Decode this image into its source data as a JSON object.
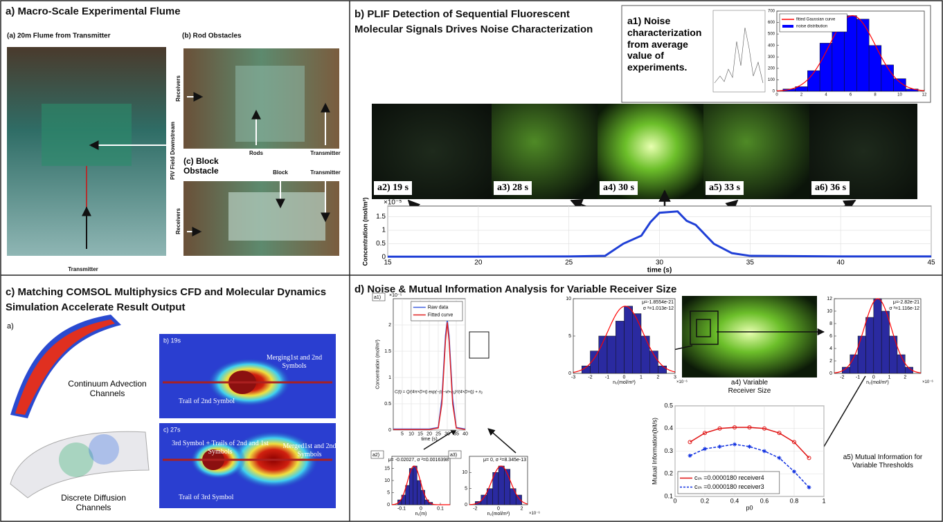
{
  "panel_a": {
    "title": "a) Macro-Scale Experimental Flume",
    "photo_1": "(a) 20m Flume from Transmitter",
    "photo_2": "(b) Rod Obstacles",
    "photo_3": "(c) Block Obstacle",
    "piv": "PIV Field Downstream",
    "transmitter_1": "Transmitter",
    "receivers_1": "Receivers",
    "rods": "Rods",
    "transmitter_2": "Transmitter",
    "block": "Block",
    "transmitter_3": "Transmitter",
    "receivers_2": "Receivers"
  },
  "panel_b": {
    "title": "b) PLIF Detection of Sequential Fluorescent Molecular Signals Drives Noise Characterization",
    "note": "a1) Noise characterization from average value of experiments.",
    "frames": [
      "a2) 19 s",
      "a3) 28 s",
      "a4) 30 s",
      "a5) 33 s",
      "a6) 36 s"
    ]
  },
  "panel_c": {
    "title": "c) Matching COMSOL Multiphysics CFD and Molecular Dynamics Simulation Accelerate Result Output",
    "label": "a)",
    "continuum": "Continuum Advection Channels",
    "discrete": "Discrete Diffusion Channels",
    "b_label": "b) 19s",
    "merging": "Merging1st and 2nd Symbols",
    "trail_2": "Trail of 2nd Symbol",
    "c_label": "c) 27s",
    "third": "3rd Symbol + Trails of 2nd and 1st Symbols",
    "merged": "Merged1st and 2nd Symbols",
    "trail_3": "Trail of 3rd Symbol"
  },
  "panel_d": {
    "title": "d) Noise & Mutual Information Analysis for Variable Receiver Size",
    "receiver": "a4) Variable Receiver Size",
    "mi_note": "a5) Mutual Information for Variable Thresholds"
  },
  "chart_data": [
    {
      "type": "line",
      "ylabel": "Concentration (mol/m³)",
      "xlabel": "time (s)",
      "y_scale_label": "×10⁻⁵",
      "x": [
        15,
        20,
        25,
        27,
        28,
        29,
        29.5,
        30,
        31,
        31.5,
        32,
        33,
        34,
        35,
        40,
        45
      ],
      "values": [
        0.02,
        0.02,
        0.03,
        0.05,
        0.5,
        0.8,
        1.3,
        1.65,
        1.7,
        1.35,
        1.2,
        0.5,
        0.15,
        0.05,
        0.03,
        0.03
      ],
      "color": "#1f3fd6",
      "xlim": [
        15,
        45
      ],
      "ylim": [
        0,
        1.9
      ],
      "xticks": [
        15,
        20,
        25,
        30,
        35,
        40,
        45
      ],
      "yticks": [
        0,
        0.5,
        1,
        1.5
      ],
      "grid": true
    },
    {
      "type": "histogram",
      "legend_labels": [
        "fitted Gaussian curve",
        "noise distribution"
      ],
      "legend": "upper left",
      "bins": [
        0.5,
        1.5,
        2.5,
        3.5,
        4.5,
        5.5,
        6.5,
        7.5,
        8.5,
        9.5,
        10.5,
        11.5
      ],
      "values": [
        20,
        40,
        180,
        420,
        550,
        660,
        630,
        400,
        230,
        110,
        20
      ],
      "color": "#0000ff",
      "fit_color": "#ff0000",
      "xlim": [
        0,
        12
      ],
      "ylim": [
        0,
        700
      ],
      "xticks": [
        0,
        2,
        4,
        6,
        8,
        10,
        12
      ],
      "yticks": [
        0,
        100,
        200,
        300,
        400,
        500,
        600,
        700
      ]
    },
    {
      "type": "line",
      "panel_label": "a1)",
      "ylabel": "Concentration (mol/m³)",
      "xlabel": "time (s)",
      "y_scale_label": "×10⁻⁵",
      "formula": "C(t) = Q/(4π×D×t) exp(−(d−vt+n₁)²/(4×D×t)) + n₂",
      "x": [
        0,
        5,
        10,
        15,
        20,
        25,
        27,
        29,
        30,
        31,
        33,
        35,
        40
      ],
      "series": [
        {
          "name": "Raw data",
          "color": "#4060e0",
          "values": [
            0.02,
            0.02,
            0.02,
            0.02,
            0.02,
            0.05,
            0.6,
            1.8,
            2.1,
            1.8,
            0.6,
            0.05,
            0.02
          ]
        },
        {
          "name": "Fitted curve",
          "color": "#e02020",
          "values": [
            0.01,
            0.01,
            0.01,
            0.01,
            0.01,
            0.04,
            0.5,
            1.7,
            2.05,
            1.7,
            0.5,
            0.04,
            0.01
          ]
        }
      ],
      "legend": "upper right",
      "xlim": [
        0,
        40
      ],
      "ylim": [
        0,
        2.5
      ],
      "xticks": [
        5,
        10,
        15,
        20,
        25,
        30,
        35,
        40
      ],
      "yticks": [
        0,
        0.5,
        1,
        1.5,
        2
      ],
      "grid": true
    },
    {
      "type": "histogram",
      "panel_label": "a2)",
      "annotations": [
        "μ= -0.02027, σ ²=0.0016398"
      ],
      "xlabel": "n₁(m)",
      "bins": [
        -0.12,
        -0.1,
        -0.08,
        -0.06,
        -0.04,
        -0.02,
        0,
        0.02,
        0.04,
        0.06
      ],
      "values": [
        2,
        4,
        8,
        15,
        16,
        10,
        6,
        2,
        1
      ],
      "color": "#2a2aa0",
      "fit_color": "#ff0000",
      "xlim": [
        -0.15,
        0.15
      ],
      "xticks": [
        -0.1,
        0,
        0.1
      ],
      "ylim": [
        0,
        20
      ],
      "yticks": [
        0,
        5,
        10,
        15
      ]
    },
    {
      "type": "histogram",
      "panel_label": "a3)",
      "annotations": [
        "μ= 0, σ ²=8.345e-13"
      ],
      "xlabel": "n₂(mol/m³)",
      "x_scale_label": "×10⁻⁶",
      "bins": [
        -2,
        -1.5,
        -1,
        -0.5,
        0,
        0.5,
        1,
        1.5,
        2
      ],
      "values": [
        1,
        3,
        5,
        10,
        12,
        11,
        5,
        3
      ],
      "color": "#2a2aa0",
      "fit_color": "#ff0000",
      "xlim": [
        -2.5,
        2.5
      ],
      "xticks": [
        -2,
        0,
        2
      ],
      "ylim": [
        0,
        15
      ],
      "yticks": [
        0,
        5,
        10
      ]
    },
    {
      "type": "histogram",
      "annotations": [
        "μ=-1.8554e-21",
        "σ ²=1.013e-12"
      ],
      "xlabel": "n₂(mol/m³)",
      "x_scale_label": "×10⁻⁶",
      "bins": [
        -2.5,
        -2,
        -1.5,
        -1,
        -0.5,
        0,
        0.5,
        1,
        1.5,
        2,
        2.5
      ],
      "values": [
        1,
        3,
        5,
        5,
        7,
        9,
        8,
        5,
        3,
        1
      ],
      "color": "#2a2aa0",
      "fit_color": "#ff0000",
      "xlim": [
        -3,
        3
      ],
      "xticks": [
        -3,
        -2,
        -1,
        0,
        1,
        2,
        3
      ],
      "ylim": [
        0,
        10
      ],
      "yticks": [
        0,
        5,
        10
      ]
    },
    {
      "type": "histogram",
      "annotations": [
        "μ=-2.82e-21",
        "σ ²=1.116e-12"
      ],
      "xlabel": "n₂(mol/m³)",
      "x_scale_label": "×10⁻⁶",
      "bins": [
        -2,
        -1.5,
        -1,
        -0.5,
        0,
        0.5,
        1,
        1.5,
        2,
        2.5
      ],
      "values": [
        1,
        3,
        6,
        9,
        12,
        10,
        6,
        3,
        1
      ],
      "color": "#2a2aa0",
      "fit_color": "#ff0000",
      "xlim": [
        -2.5,
        3
      ],
      "xticks": [
        -2,
        -1,
        0,
        1,
        2
      ],
      "ylim": [
        0,
        12
      ],
      "yticks": [
        0,
        2,
        4,
        6,
        8,
        10,
        12
      ]
    },
    {
      "type": "line",
      "ylabel": "Mutual Information(bit/s)",
      "xlabel": "p0",
      "x": [
        0.1,
        0.2,
        0.3,
        0.4,
        0.5,
        0.6,
        0.7,
        0.8,
        0.9
      ],
      "series": [
        {
          "name": "cₜₕ =0.0000180 receiver4",
          "color": "#e01010",
          "marker": "circle",
          "values": [
            0.34,
            0.38,
            0.4,
            0.405,
            0.405,
            0.4,
            0.38,
            0.34,
            0.27
          ]
        },
        {
          "name": "cₜₕ =0.0000180 receiver3",
          "color": "#1030e0",
          "marker": "star",
          "dash": true,
          "values": [
            0.28,
            0.31,
            0.32,
            0.33,
            0.32,
            0.3,
            0.27,
            0.21,
            0.14
          ]
        }
      ],
      "legend": "lower left",
      "xlim": [
        0,
        1
      ],
      "ylim": [
        0.1,
        0.5
      ],
      "xticks": [
        0,
        0.2,
        0.4,
        0.6,
        0.8,
        1
      ],
      "yticks": [
        0.1,
        0.2,
        0.3,
        0.4,
        0.5
      ],
      "grid": true
    }
  ]
}
